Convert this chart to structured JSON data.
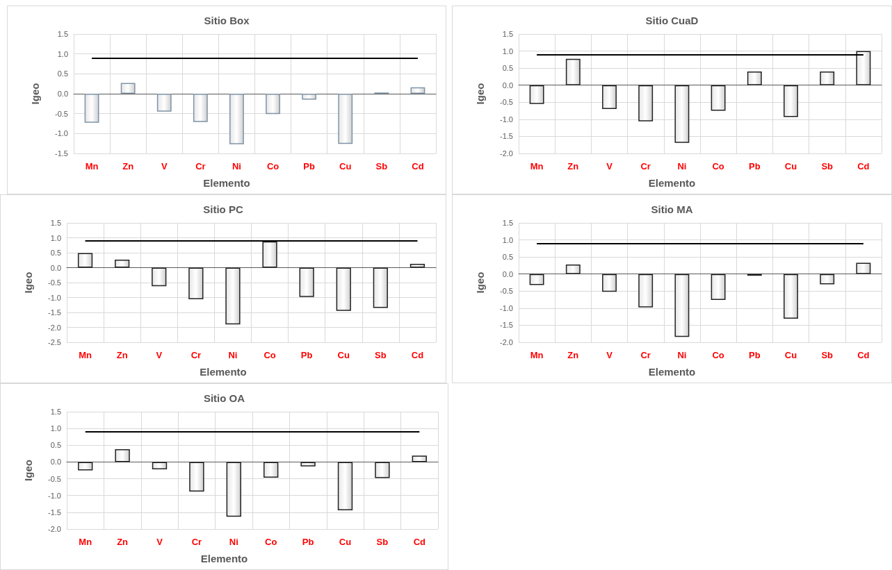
{
  "chart_data": [
    {
      "type": "bar",
      "title": "Sitio Box",
      "xlabel": "Elemento",
      "ylabel": "Igeo",
      "categories": [
        "Mn",
        "Zn",
        "V",
        "Cr",
        "Ni",
        "Co",
        "Pb",
        "Cu",
        "Sb",
        "Cd"
      ],
      "values": [
        -0.73,
        0.27,
        -0.45,
        -0.71,
        -1.27,
        -0.51,
        -0.15,
        -1.26,
        0.03,
        0.16
      ],
      "color": "#7f93a8",
      "ylim": [
        -1.5,
        1.5
      ],
      "yticks": [
        -1.5,
        {
          "value": -1,
          "label": "-1.0"
        },
        -0.5,
        {
          "value": 0,
          "label": "0.0"
        },
        0.5,
        {
          "value": 1,
          "label": "1.0"
        },
        1.5
      ],
      "ref_lines": [
        {
          "axis": "y",
          "value": 0.9,
          "color": "#000000"
        }
      ],
      "grid": true
    },
    {
      "type": "bar",
      "title": "Sitio CuaD",
      "xlabel": "Elemento",
      "ylabel": "Igeo",
      "categories": [
        "Mn",
        "Zn",
        "V",
        "Cr",
        "Ni",
        "Co",
        "Pb",
        "Cu",
        "Sb",
        "Cd"
      ],
      "values": [
        -0.55,
        0.77,
        -0.7,
        -1.06,
        -1.69,
        -0.75,
        0.4,
        -0.93,
        0.4,
        1.0
      ],
      "color": "#222222",
      "ylim": [
        -2,
        1.5
      ],
      "yticks": [
        {
          "value": -2,
          "label": "-2.0"
        },
        -1.5,
        {
          "value": -1,
          "label": "-1.0"
        },
        -0.5,
        {
          "value": 0,
          "label": "0.0"
        },
        0.5,
        {
          "value": 1,
          "label": "1.0"
        },
        1.5
      ],
      "ref_lines": [
        {
          "axis": "y",
          "value": 0.9,
          "color": "#000000"
        }
      ],
      "grid": true
    },
    {
      "type": "bar",
      "title": "Sitio PC",
      "xlabel": "Elemento",
      "ylabel": "Igeo",
      "categories": [
        "Mn",
        "Zn",
        "V",
        "Cr",
        "Ni",
        "Co",
        "Pb",
        "Cu",
        "Sb",
        "Cd"
      ],
      "values": [
        0.49,
        0.27,
        -0.62,
        -1.06,
        -1.9,
        0.88,
        -0.98,
        -1.45,
        -1.35,
        0.13
      ],
      "color": "#222222",
      "ylim": [
        -2.5,
        1.5
      ],
      "yticks": [
        -2.5,
        {
          "value": -2,
          "label": "-2.0"
        },
        -1.5,
        {
          "value": -1,
          "label": "-1.0"
        },
        -0.5,
        {
          "value": 0,
          "label": "0.0"
        },
        0.5,
        {
          "value": 1,
          "label": "1.0"
        },
        1.5
      ],
      "ref_lines": [
        {
          "axis": "y",
          "value": 0.9,
          "color": "#000000"
        }
      ],
      "grid": true
    },
    {
      "type": "bar",
      "title": "Sitio MA",
      "xlabel": "Elemento",
      "ylabel": "Igeo",
      "categories": [
        "Mn",
        "Zn",
        "V",
        "Cr",
        "Ni",
        "Co",
        "Pb",
        "Cu",
        "Sb",
        "Cd"
      ],
      "values": [
        -0.32,
        0.28,
        -0.52,
        -0.98,
        -1.84,
        -0.76,
        -0.05,
        -1.31,
        -0.3,
        0.33
      ],
      "color": "#222222",
      "ylim": [
        -2,
        1.5
      ],
      "yticks": [
        {
          "value": -2,
          "label": "-2.0"
        },
        -1.5,
        {
          "value": -1,
          "label": "-1.0"
        },
        -0.5,
        {
          "value": 0,
          "label": "0.0"
        },
        0.5,
        {
          "value": 1,
          "label": "1.0"
        },
        1.5
      ],
      "ref_lines": [
        {
          "axis": "y",
          "value": 0.9,
          "color": "#000000"
        }
      ],
      "grid": true
    },
    {
      "type": "bar",
      "title": "Sitio OA",
      "xlabel": "Elemento",
      "ylabel": "Igeo",
      "categories": [
        "Mn",
        "Zn",
        "V",
        "Cr",
        "Ni",
        "Co",
        "Pb",
        "Cu",
        "Sb",
        "Cd"
      ],
      "values": [
        -0.25,
        0.38,
        -0.22,
        -0.88,
        -1.63,
        -0.47,
        -0.13,
        -1.44,
        -0.48,
        0.19
      ],
      "color": "#222222",
      "ylim": [
        -2,
        1.5
      ],
      "yticks": [
        {
          "value": -2,
          "label": "-2.0"
        },
        -1.5,
        {
          "value": -1,
          "label": "-1.0"
        },
        -0.5,
        {
          "value": 0,
          "label": "0.0"
        },
        0.5,
        {
          "value": 1,
          "label": "1.0"
        },
        1.5
      ],
      "ref_lines": [
        {
          "axis": "y",
          "value": 0.9,
          "color": "#000000"
        }
      ],
      "grid": true
    }
  ]
}
